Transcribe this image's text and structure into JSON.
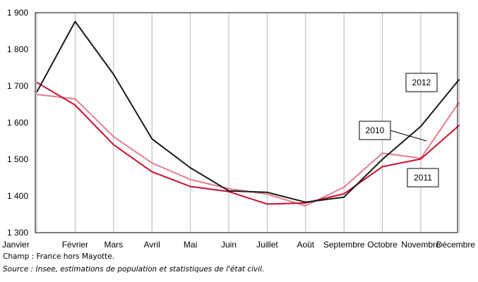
{
  "chart_data": {
    "type": "line",
    "title": "",
    "xlabel": "",
    "ylabel": "",
    "categories": [
      "Janvier",
      "Février",
      "Mars",
      "Avril",
      "Mai",
      "Juin",
      "Juillet",
      "Août",
      "Septembre",
      "Octobre",
      "Novembre",
      "Décembre"
    ],
    "ylim": [
      1300,
      1900
    ],
    "yticks": [
      1300,
      1400,
      1500,
      1600,
      1700,
      1800,
      1900
    ],
    "ytick_labels": [
      "1 300",
      "1 400",
      "1 500",
      "1 600",
      "1 700",
      "1 800",
      "1 900"
    ],
    "grid": "vertical",
    "series": [
      {
        "name": "2012",
        "color": "#1a1a1a",
        "values": [
          1683,
          1876,
          1732,
          1556,
          1477,
          1414,
          1410,
          1383,
          1397,
          1500,
          1590,
          1718
        ]
      },
      {
        "name": "2010",
        "color": "#e0808e",
        "values": [
          1677,
          1665,
          1562,
          1490,
          1445,
          1420,
          1405,
          1373,
          1424,
          1517,
          1503,
          1656
        ]
      },
      {
        "name": "2011",
        "color": "#c8102e",
        "values": [
          1710,
          1648,
          1540,
          1466,
          1426,
          1412,
          1378,
          1381,
          1406,
          1480,
          1501,
          1593
        ]
      }
    ]
  },
  "notes": {
    "champ": "Champ : France hors Mayotte.",
    "source_label": "Source",
    "source_text": " : Insee, estimations de population et statistiques de l'état civil."
  }
}
